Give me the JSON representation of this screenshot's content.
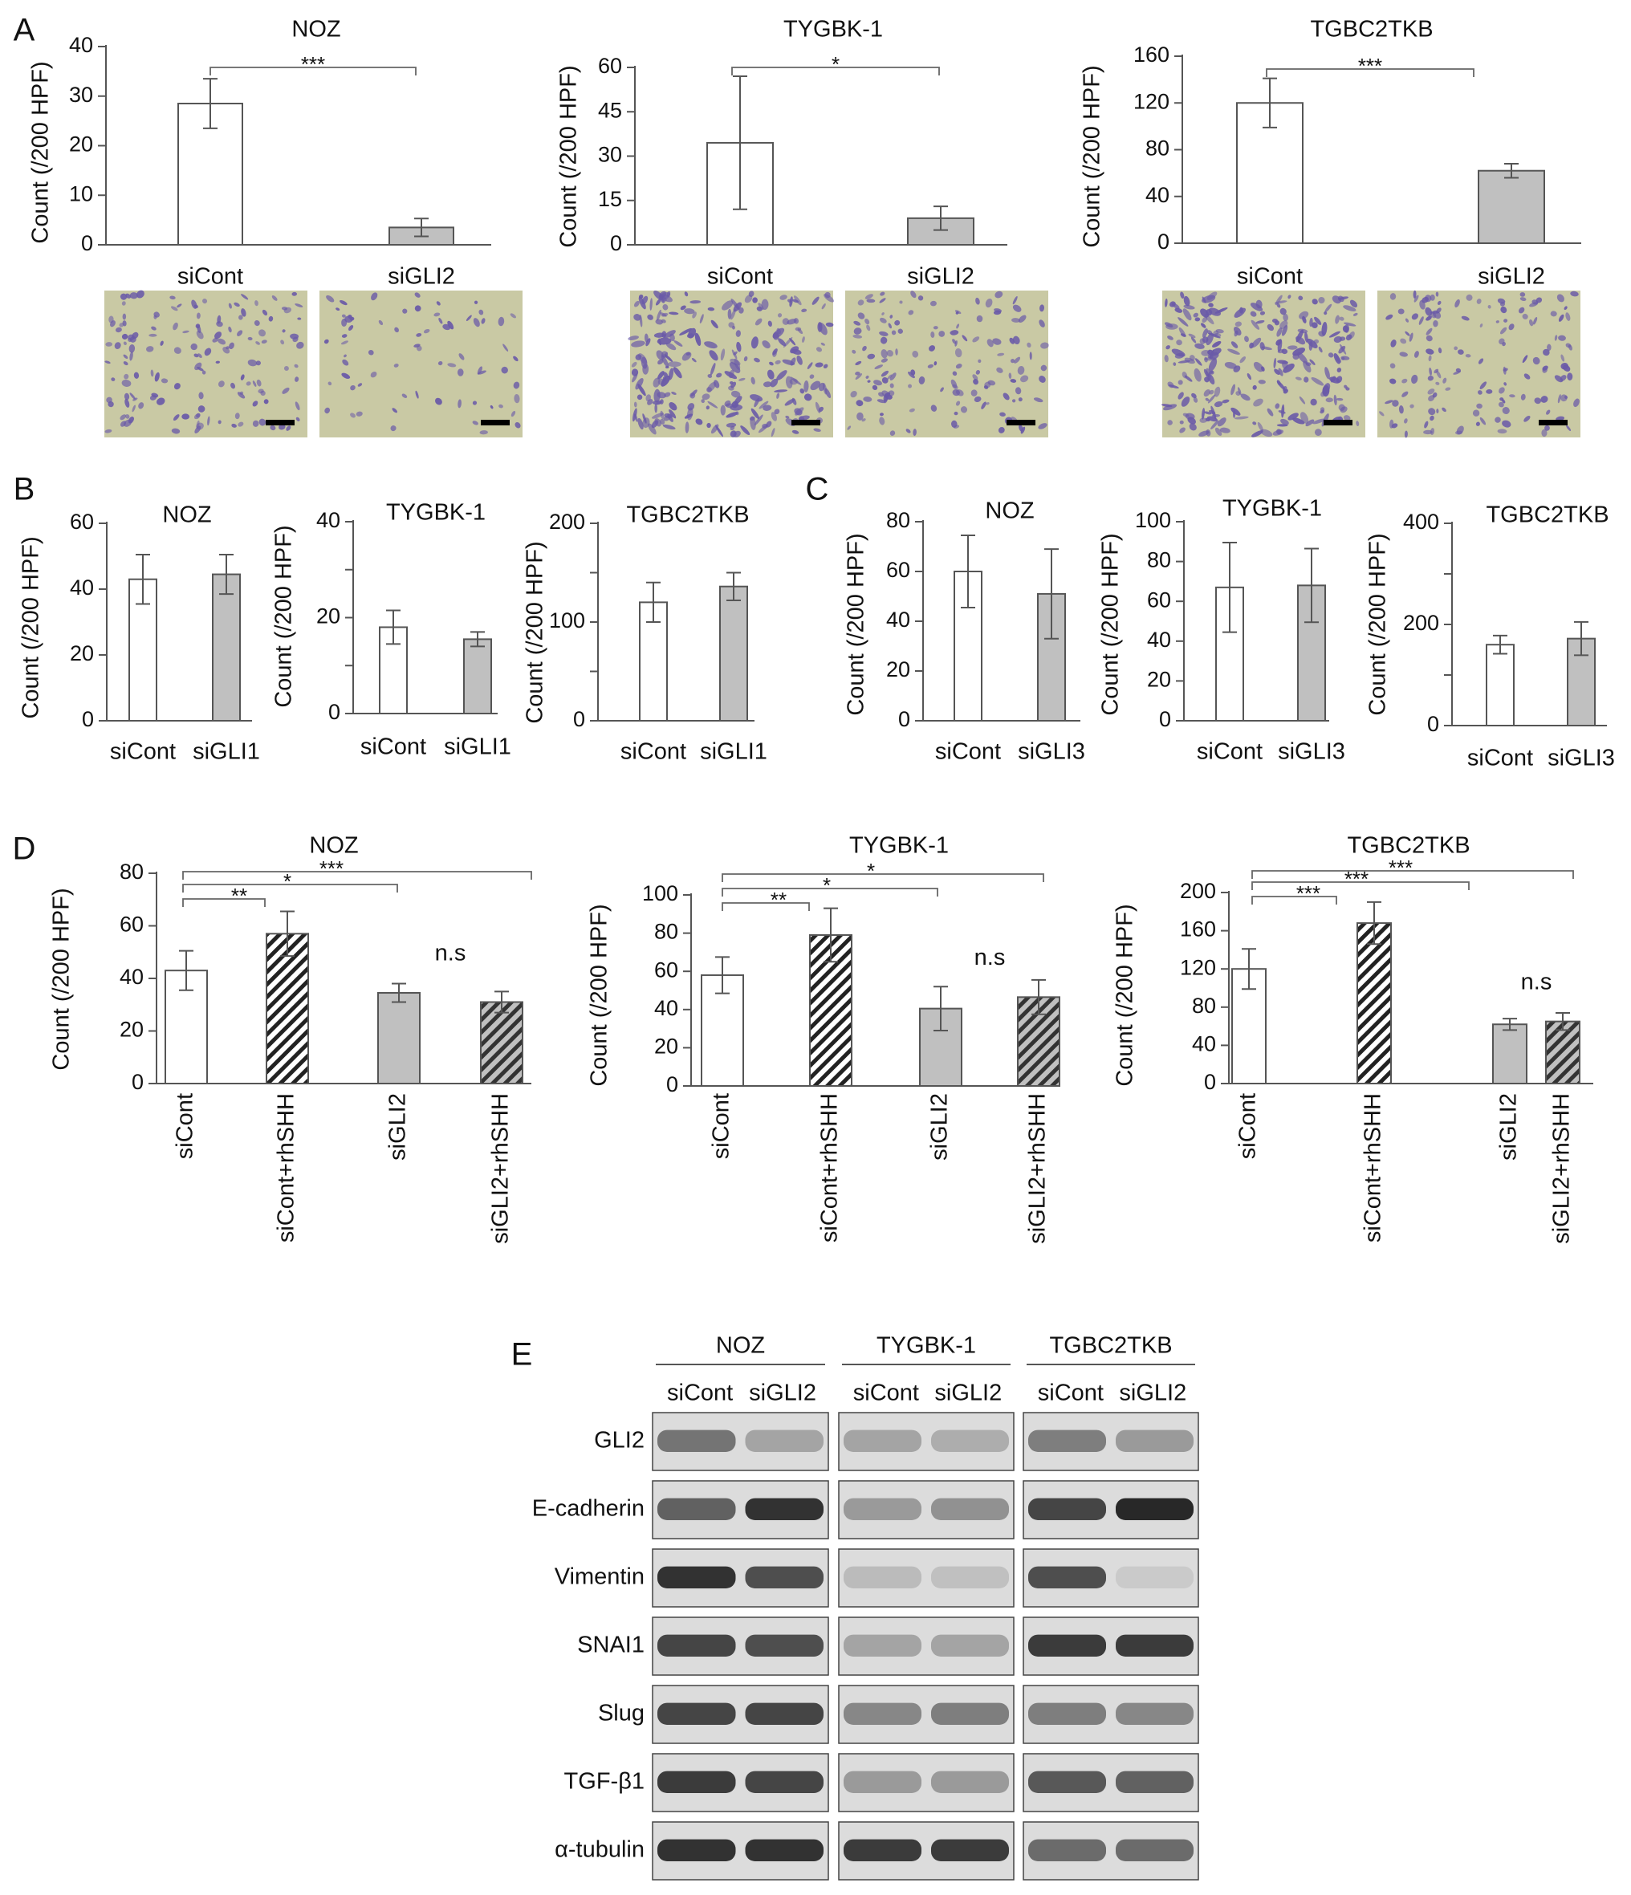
{
  "panel_labels": [
    "A",
    "B",
    "C",
    "D",
    "E"
  ],
  "colors": {
    "siCont": "#ffffff",
    "siGLI": "#c0c0c0",
    "axis": "#555555",
    "stain": "#6a5aa8",
    "field": "#c9c9a4"
  },
  "chart_data": [
    {
      "id": "A-NOZ",
      "panel": "A",
      "type": "bar",
      "title": "NOZ",
      "ylabel": "Count (/200 HPF)",
      "ylim": [
        0,
        40
      ],
      "yticks": [
        0,
        10,
        20,
        30,
        40
      ],
      "categories": [
        "siCont",
        "siGLI2"
      ],
      "values": [
        28.5,
        3.5
      ],
      "errors": [
        5,
        1.8
      ],
      "fills": [
        "white",
        "gray"
      ],
      "significance": [
        {
          "from": 0,
          "to": 1,
          "label": "***"
        }
      ]
    },
    {
      "id": "A-TYGBK",
      "panel": "A",
      "type": "bar",
      "title": "TYGBK-1",
      "ylabel": "Count (/200 HPF)",
      "ylim": [
        0,
        60
      ],
      "yticks": [
        0,
        15,
        30,
        45,
        60
      ],
      "categories": [
        "siCont",
        "siGLI2"
      ],
      "values": [
        34.5,
        9
      ],
      "errors": [
        22.5,
        4
      ],
      "fills": [
        "white",
        "gray"
      ],
      "significance": [
        {
          "from": 0,
          "to": 1,
          "label": "*"
        }
      ]
    },
    {
      "id": "A-TGBC",
      "panel": "A",
      "type": "bar",
      "title": "TGBC2TKB",
      "ylabel": "Count (/200 HPF)",
      "ylim": [
        0,
        160
      ],
      "yticks": [
        0,
        40,
        80,
        120,
        160
      ],
      "categories": [
        "siCont",
        "siGLI2"
      ],
      "values": [
        120,
        62
      ],
      "errors": [
        21,
        6
      ],
      "fills": [
        "white",
        "gray"
      ],
      "significance": [
        {
          "from": 0,
          "to": 1,
          "label": "***"
        }
      ]
    },
    {
      "id": "B-NOZ",
      "panel": "B",
      "type": "bar",
      "title": "NOZ",
      "ylabel": "Count (/200 HPF)",
      "ylim": [
        0,
        60
      ],
      "yticks": [
        0,
        20,
        40,
        60
      ],
      "categories": [
        "siCont",
        "siGLI1"
      ],
      "values": [
        43,
        44.5
      ],
      "errors": [
        7.5,
        6
      ],
      "fills": [
        "white",
        "gray"
      ],
      "significance": []
    },
    {
      "id": "B-TYGBK",
      "panel": "B",
      "type": "bar",
      "title": "TYGBK-1",
      "ylabel": "Count (/200 HPF)",
      "ylim": [
        0,
        40
      ],
      "yticks": [
        0,
        20,
        40
      ],
      "categories": [
        "siCont",
        "siGLI1"
      ],
      "values": [
        18,
        15.5
      ],
      "errors": [
        3.5,
        1.5
      ],
      "fills": [
        "white",
        "gray"
      ],
      "significance": []
    },
    {
      "id": "B-TGBC",
      "panel": "B",
      "type": "bar",
      "title": "TGBC2TKB",
      "ylabel": "Count (/200 HPF)",
      "ylim": [
        0,
        200
      ],
      "yticks": [
        0,
        100,
        200
      ],
      "categories": [
        "siCont",
        "siGLI1"
      ],
      "values": [
        120,
        136
      ],
      "errors": [
        20,
        14
      ],
      "fills": [
        "white",
        "gray"
      ],
      "significance": []
    },
    {
      "id": "C-NOZ",
      "panel": "C",
      "type": "bar",
      "title": "NOZ",
      "ylabel": "Count (/200 HPF)",
      "ylim": [
        0,
        80
      ],
      "yticks": [
        0,
        20,
        40,
        60,
        80
      ],
      "categories": [
        "siCont",
        "siGLI3"
      ],
      "values": [
        60,
        51
      ],
      "errors": [
        14.5,
        18
      ],
      "fills": [
        "white",
        "gray"
      ],
      "significance": []
    },
    {
      "id": "C-TYGBK",
      "panel": "C",
      "type": "bar",
      "title": "TYGBK-1",
      "ylabel": "Count (/200 HPF)",
      "ylim": [
        0,
        100
      ],
      "yticks": [
        0,
        20,
        40,
        60,
        80,
        100
      ],
      "categories": [
        "siCont",
        "siGLI3"
      ],
      "values": [
        67,
        68
      ],
      "errors": [
        22.5,
        18.5
      ],
      "fills": [
        "white",
        "gray"
      ],
      "significance": []
    },
    {
      "id": "C-TGBC",
      "panel": "C",
      "type": "bar",
      "title": "TGBC2TKB",
      "ylabel": "Count (/200 HPF)",
      "ylim": [
        0,
        400
      ],
      "yticks": [
        0,
        200,
        400
      ],
      "categories": [
        "siCont",
        "siGLI3"
      ],
      "values": [
        160,
        172
      ],
      "errors": [
        18,
        33
      ],
      "fills": [
        "white",
        "gray"
      ],
      "significance": []
    },
    {
      "id": "D-NOZ",
      "panel": "D",
      "type": "bar",
      "title": "NOZ",
      "ylabel": "Count (/200 HPF)",
      "ylim": [
        0,
        80
      ],
      "yticks": [
        0,
        20,
        40,
        60,
        80
      ],
      "categories": [
        "siCont",
        "siCont+rhSHH",
        "siGLI2",
        "siGLI2+rhSHH"
      ],
      "values": [
        43,
        57,
        34.5,
        31
      ],
      "errors": [
        7.5,
        8.5,
        3.5,
        4
      ],
      "fills": [
        "white",
        "hatch-white",
        "gray",
        "hatch-gray"
      ],
      "significance": [
        {
          "from": 0,
          "to": 1,
          "label": "**"
        },
        {
          "from": 0,
          "to": 2,
          "label": "*"
        },
        {
          "from": 0,
          "to": 3,
          "label": "***"
        }
      ],
      "annotation": "n.s"
    },
    {
      "id": "D-TYGBK",
      "panel": "D",
      "type": "bar",
      "title": "TYGBK-1",
      "ylabel": "Count (/200 HPF)",
      "ylim": [
        0,
        100
      ],
      "yticks": [
        0,
        20,
        40,
        60,
        80,
        100
      ],
      "categories": [
        "siCont",
        "siCont+rhSHH",
        "siGLI2",
        "siGLI2+rhSHH"
      ],
      "values": [
        58,
        79,
        40.5,
        46.5
      ],
      "errors": [
        9.5,
        14,
        11.5,
        9
      ],
      "fills": [
        "white",
        "hatch-white",
        "gray",
        "hatch-gray"
      ],
      "significance": [
        {
          "from": 0,
          "to": 1,
          "label": "**"
        },
        {
          "from": 0,
          "to": 2,
          "label": "*"
        },
        {
          "from": 0,
          "to": 3,
          "label": "*"
        }
      ],
      "annotation": "n.s"
    },
    {
      "id": "D-TGBC",
      "panel": "D",
      "type": "bar",
      "title": "TGBC2TKB",
      "ylabel": "Count (/200 HPF)",
      "ylim": [
        0,
        200
      ],
      "yticks": [
        0,
        40,
        80,
        120,
        160,
        200
      ],
      "categories": [
        "siCont",
        "siCont+rhSHH",
        "siGLI2",
        "siGLI2+rhSHH"
      ],
      "values": [
        120,
        168,
        62,
        65
      ],
      "errors": [
        21,
        22,
        6,
        9
      ],
      "fills": [
        "white",
        "hatch-white",
        "gray",
        "hatch-gray"
      ],
      "significance": [
        {
          "from": 0,
          "to": 1,
          "label": "***"
        },
        {
          "from": 0,
          "to": 2,
          "label": "***"
        },
        {
          "from": 0,
          "to": 3,
          "label": "***"
        }
      ],
      "annotation": "n.s"
    }
  ],
  "micrographs": {
    "labels": [
      "siCont",
      "siGLI2"
    ],
    "cell_density": [
      {
        "siCont": "medium",
        "siGLI2": "sparse"
      },
      {
        "siCont": "dense",
        "siGLI2": "medium"
      },
      {
        "siCont": "dense",
        "siGLI2": "medium"
      }
    ]
  },
  "western_blot": {
    "groups": [
      {
        "name": "NOZ",
        "lanes": [
          "siCont",
          "siGLI2"
        ]
      },
      {
        "name": "TYGBK-1",
        "lanes": [
          "siCont",
          "siGLI2"
        ]
      },
      {
        "name": "TGBC2TKB",
        "lanes": [
          "siCont",
          "siGLI2"
        ]
      }
    ],
    "proteins": [
      "GLI2",
      "E-cadherin",
      "Vimentin",
      "SNAI1",
      "Slug",
      "TGF-β1",
      "α-tubulin"
    ],
    "band_intensity": [
      [
        [
          0.55,
          0.3
        ],
        [
          0.3,
          0.25
        ],
        [
          0.5,
          0.35
        ]
      ],
      [
        [
          0.65,
          0.9
        ],
        [
          0.35,
          0.4
        ],
        [
          0.8,
          0.95
        ]
      ],
      [
        [
          0.9,
          0.75
        ],
        [
          0.18,
          0.15
        ],
        [
          0.75,
          0.1
        ]
      ],
      [
        [
          0.8,
          0.75
        ],
        [
          0.3,
          0.3
        ],
        [
          0.85,
          0.85
        ]
      ],
      [
        [
          0.8,
          0.8
        ],
        [
          0.45,
          0.5
        ],
        [
          0.5,
          0.45
        ]
      ],
      [
        [
          0.85,
          0.8
        ],
        [
          0.35,
          0.35
        ],
        [
          0.7,
          0.65
        ]
      ],
      [
        [
          0.9,
          0.9
        ],
        [
          0.85,
          0.85
        ],
        [
          0.6,
          0.6
        ]
      ]
    ]
  }
}
